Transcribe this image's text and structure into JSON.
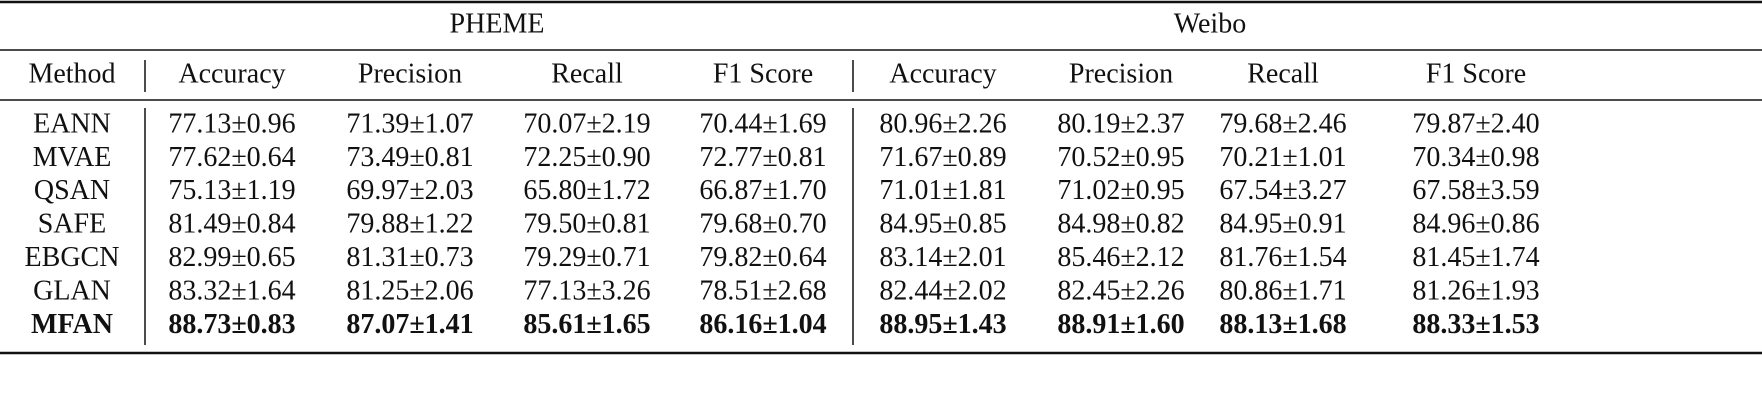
{
  "table": {
    "groups": [
      "PHEME",
      "Weibo"
    ],
    "columns": [
      "Method",
      "Accuracy",
      "Precision",
      "Recall",
      "F1 Score",
      "Accuracy",
      "Precision",
      "Recall",
      "F1 Score"
    ],
    "rows": [
      [
        "EANN",
        "77.13±0.96",
        "71.39±1.07",
        "70.07±2.19",
        "70.44±1.69",
        "80.96±2.26",
        "80.19±2.37",
        "79.68±2.46",
        "79.87±2.40"
      ],
      [
        "MVAE",
        "77.62±0.64",
        "73.49±0.81",
        "72.25±0.90",
        "72.77±0.81",
        "71.67±0.89",
        "70.52±0.95",
        "70.21±1.01",
        "70.34±0.98"
      ],
      [
        "QSAN",
        "75.13±1.19",
        "69.97±2.03",
        "65.80±1.72",
        "66.87±1.70",
        "71.01±1.81",
        "71.02±0.95",
        "67.54±3.27",
        "67.58±3.59"
      ],
      [
        "SAFE",
        "81.49±0.84",
        "79.88±1.22",
        "79.50±0.81",
        "79.68±0.70",
        "84.95±0.85",
        "84.98±0.82",
        "84.95±0.91",
        "84.96±0.86"
      ],
      [
        "EBGCN",
        "82.99±0.65",
        "81.31±0.73",
        "79.29±0.71",
        "79.82±0.64",
        "83.14±2.01",
        "85.46±2.12",
        "81.76±1.54",
        "81.45±1.74"
      ],
      [
        "GLAN",
        "83.32±1.64",
        "81.25±2.06",
        "77.13±3.26",
        "78.51±2.68",
        "82.44±2.02",
        "82.45±2.26",
        "80.86±1.71",
        "81.26±1.93"
      ],
      [
        "MFAN",
        "88.73±0.83",
        "87.07±1.41",
        "85.61±1.65",
        "86.16±1.04",
        "88.95±1.43",
        "88.91±1.60",
        "88.13±1.68",
        "88.33±1.53"
      ]
    ]
  }
}
